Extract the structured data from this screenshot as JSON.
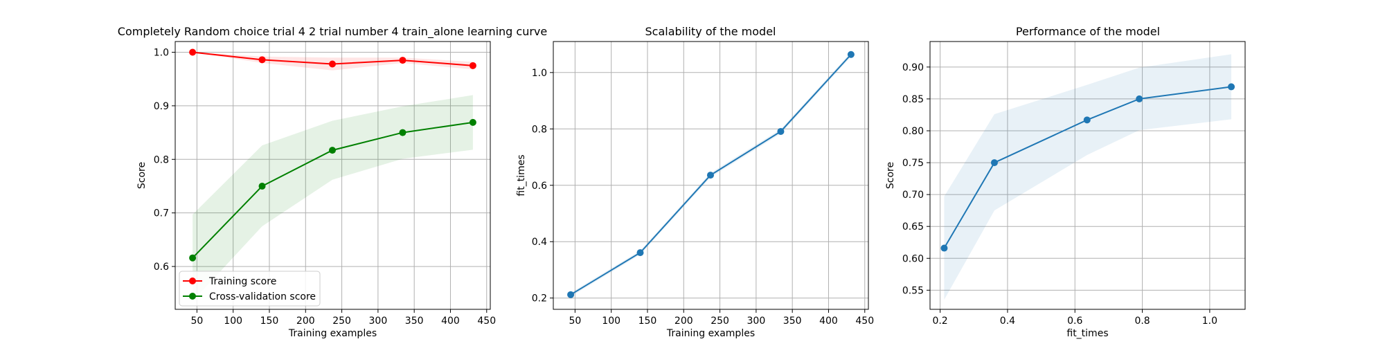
{
  "chart_data": [
    {
      "type": "line",
      "title": "Completely Random choice trial 4 2 trial number 4 train_alone learning curve",
      "xlabel": "Training examples",
      "ylabel": "Score",
      "xlim": [
        20,
        455
      ],
      "ylim": [
        0.52,
        1.02
      ],
      "xticks": [
        50,
        100,
        150,
        200,
        250,
        300,
        350,
        400,
        450
      ],
      "yticks": [
        0.6,
        0.7,
        0.8,
        0.9,
        1.0
      ],
      "grid": true,
      "legend": "lower-left",
      "series": [
        {
          "name": "Training score",
          "color": "#ff0000",
          "x": [
            44,
            140,
            237,
            334,
            431
          ],
          "y": [
            1.0,
            0.986,
            0.978,
            0.985,
            0.975
          ],
          "band_low": [
            1.0,
            0.98,
            0.966,
            0.98,
            0.968
          ],
          "band_high": [
            1.0,
            0.992,
            0.99,
            0.99,
            0.982
          ]
        },
        {
          "name": "Cross-validation score",
          "color": "#008000",
          "x": [
            44,
            140,
            237,
            334,
            431
          ],
          "y": [
            0.616,
            0.75,
            0.817,
            0.85,
            0.869
          ],
          "band_low": [
            0.535,
            0.675,
            0.762,
            0.801,
            0.818
          ],
          "band_high": [
            0.697,
            0.826,
            0.872,
            0.899,
            0.92
          ]
        }
      ]
    },
    {
      "type": "line",
      "title": "Scalability of the model",
      "xlabel": "Training examples",
      "ylabel": "fit_times",
      "xlim": [
        20,
        455
      ],
      "ylim": [
        0.16,
        1.11
      ],
      "xticks": [
        50,
        100,
        150,
        200,
        250,
        300,
        350,
        400,
        450
      ],
      "yticks": [
        0.2,
        0.4,
        0.6,
        0.8,
        1.0
      ],
      "grid": true,
      "series": [
        {
          "color": "#1f77b4",
          "x": [
            44,
            140,
            237,
            334,
            431
          ],
          "y": [
            0.212,
            0.361,
            0.636,
            0.791,
            1.064
          ],
          "band_low": [
            0.205,
            0.354,
            0.628,
            0.783,
            1.056
          ],
          "band_high": [
            0.219,
            0.368,
            0.644,
            0.799,
            1.072
          ]
        }
      ]
    },
    {
      "type": "line",
      "title": "Performance of the model",
      "xlabel": "fit_times",
      "ylabel": "Score",
      "xlim": [
        0.17,
        1.105
      ],
      "ylim": [
        0.52,
        0.94
      ],
      "xticks": [
        0.2,
        0.4,
        0.6,
        0.8,
        1.0
      ],
      "yticks": [
        0.55,
        0.6,
        0.65,
        0.7,
        0.75,
        0.8,
        0.85,
        0.9
      ],
      "grid": true,
      "series": [
        {
          "color": "#1f77b4",
          "x": [
            0.212,
            0.361,
            0.636,
            0.791,
            1.064
          ],
          "y": [
            0.616,
            0.75,
            0.817,
            0.85,
            0.869
          ],
          "band_low": [
            0.535,
            0.675,
            0.762,
            0.801,
            0.818
          ],
          "band_high": [
            0.697,
            0.826,
            0.872,
            0.899,
            0.92
          ]
        }
      ]
    }
  ]
}
